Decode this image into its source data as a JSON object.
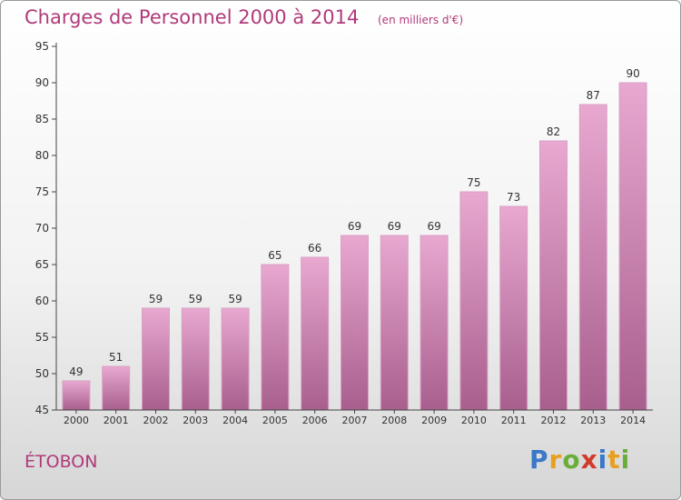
{
  "title": "Charges de Personnel 2000 à 2014",
  "subtitle": "(en milliers d'€)",
  "town": "ÉTOBON",
  "logo": {
    "letters": [
      "P",
      "r",
      "o",
      "x",
      "i",
      "t",
      "i"
    ],
    "colors": [
      "#3a78c8",
      "#e8a020",
      "#6aae3a",
      "#d23a2a",
      "#3a78c8",
      "#e8a020",
      "#6aae3a"
    ]
  },
  "colors": {
    "accent": "#b03a7a",
    "bar_top": "#e8a8d0",
    "bar_bottom": "#a85f8e"
  },
  "chart_data": {
    "type": "bar",
    "title": "Charges de Personnel 2000 à 2014",
    "subtitle": "(en milliers d'€)",
    "xlabel": "",
    "ylabel": "",
    "categories": [
      "2000",
      "2001",
      "2002",
      "2003",
      "2004",
      "2005",
      "2006",
      "2007",
      "2008",
      "2009",
      "2010",
      "2011",
      "2012",
      "2013",
      "2014"
    ],
    "values": [
      49,
      51,
      59,
      59,
      59,
      65,
      66,
      69,
      69,
      69,
      75,
      73,
      82,
      87,
      90
    ],
    "ylim": [
      45,
      95
    ],
    "yticks": [
      45,
      50,
      55,
      60,
      65,
      70,
      75,
      80,
      85,
      90,
      95
    ],
    "grid": false,
    "legend": "none"
  }
}
